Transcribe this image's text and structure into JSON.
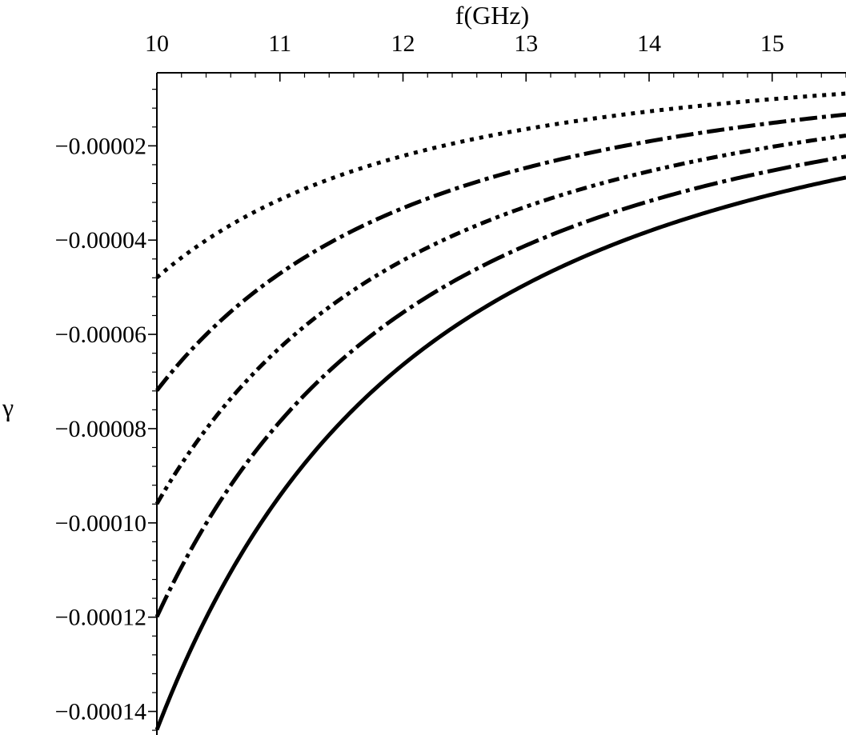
{
  "chart_data": {
    "type": "line",
    "title": "",
    "xlabel": "f(GHz)",
    "ylabel": "γ",
    "x_axis_position": "top",
    "y_axis_position": "left",
    "xlim": [
      10,
      15.6
    ],
    "ylim": [
      -0.000145,
      -4.5e-06
    ],
    "x_ticks": [
      10,
      11,
      12,
      13,
      14,
      15
    ],
    "x_tick_labels": [
      "10",
      "11",
      "12",
      "13",
      "14",
      "15"
    ],
    "y_ticks": [
      -2e-05,
      -4e-05,
      -6e-05,
      -8e-05,
      -0.0001,
      -0.00012,
      -0.00014
    ],
    "y_tick_labels": [
      "−0.00002",
      "−0.00004",
      "−0.00006",
      "−0.00008",
      "−0.00010",
      "−0.00012",
      "−0.00014"
    ],
    "grid": false,
    "legend": "none",
    "series_model": "y = -a / (x - c)^2",
    "series": [
      {
        "style": "dotted",
        "color": "#000000",
        "a": 0.000862,
        "c": 5.76,
        "x_range": [
          10,
          15.6
        ]
      },
      {
        "style": "dashed",
        "color": "#000000",
        "a": 0.001293,
        "c": 5.76,
        "x_range": [
          10,
          15.6
        ]
      },
      {
        "style": "dash-dot",
        "color": "#000000",
        "a": 0.001725,
        "c": 5.76,
        "x_range": [
          10,
          15.6
        ]
      },
      {
        "style": "long-dashed",
        "color": "#000000",
        "a": 0.002156,
        "c": 5.76,
        "x_range": [
          10,
          15.6
        ]
      },
      {
        "style": "solid",
        "color": "#000000",
        "a": 0.002587,
        "c": 5.76,
        "x_range": [
          10,
          15.6
        ]
      }
    ]
  }
}
